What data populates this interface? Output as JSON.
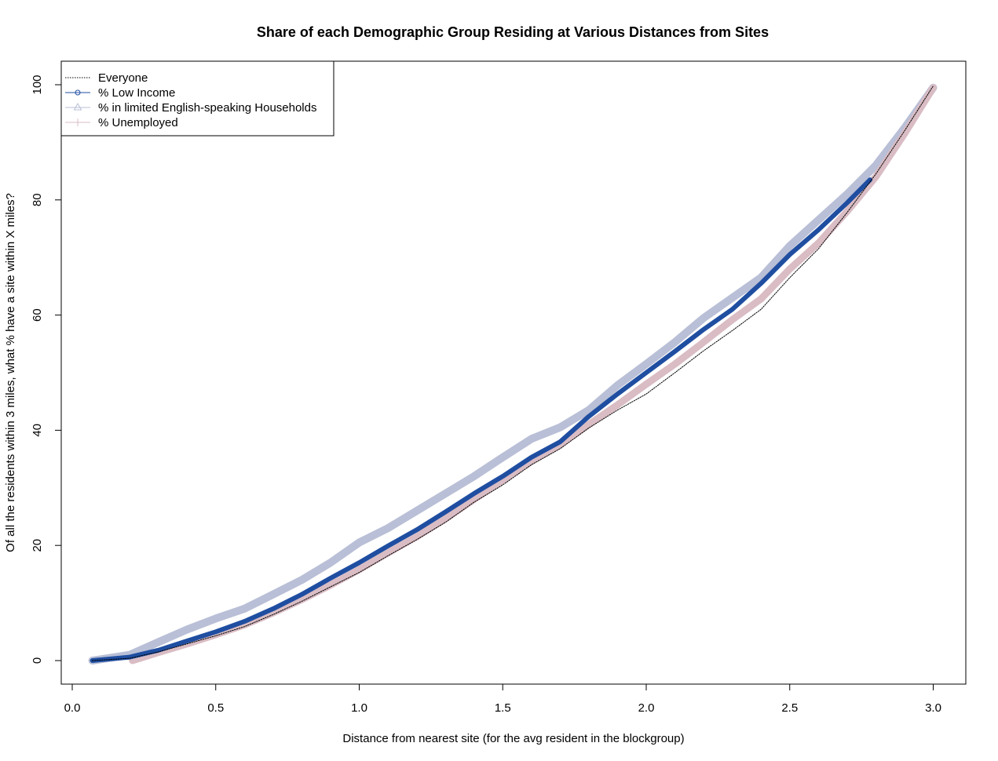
{
  "chart_data": {
    "type": "line",
    "title": "Share of each Demographic Group Residing at Various Distances from Sites",
    "xlabel": "Distance from nearest site (for the avg resident in the blockgroup)",
    "ylabel": "Of all the residents within 3 miles, what % have a site within X miles?",
    "xlim": [
      -0.04,
      3.11
    ],
    "ylim": [
      -4,
      105
    ],
    "xticks": [
      "0.0",
      "0.5",
      "1.0",
      "1.5",
      "2.0",
      "2.5",
      "3.0"
    ],
    "xtick_values": [
      0,
      0.5,
      1.0,
      1.5,
      2.0,
      2.5,
      3.0
    ],
    "yticks": [
      "0",
      "20",
      "40",
      "60",
      "80",
      "100"
    ],
    "ytick_values": [
      0,
      20,
      40,
      60,
      80,
      100
    ],
    "legend_position": "top-left",
    "grid": false,
    "series": [
      {
        "name": "Everyone",
        "color": "#000000",
        "style": "dotted",
        "x": [
          0.07,
          0.2,
          0.3,
          0.4,
          0.5,
          0.6,
          0.7,
          0.8,
          0.9,
          1.0,
          1.1,
          1.2,
          1.3,
          1.4,
          1.5,
          1.6,
          1.7,
          1.8,
          1.9,
          2.0,
          2.1,
          2.2,
          2.3,
          2.4,
          2.5,
          2.6,
          2.7,
          2.8,
          2.9,
          3.0
        ],
        "values": [
          0,
          0.4,
          1.5,
          2.9,
          4.3,
          5.9,
          8.0,
          10.3,
          12.8,
          15.3,
          18.2,
          21.0,
          24.0,
          27.5,
          30.5,
          34.0,
          36.8,
          40.4,
          43.5,
          46.3,
          50.0,
          53.8,
          57.3,
          61.0,
          66.5,
          71.5,
          77.8,
          84.5,
          92.0,
          99.8
        ]
      },
      {
        "name": "% Low Income",
        "color": "#1f4ea1",
        "style": "thick",
        "x": [
          0.07,
          0.2,
          0.3,
          0.4,
          0.5,
          0.6,
          0.7,
          0.8,
          0.9,
          1.0,
          1.1,
          1.2,
          1.3,
          1.4,
          1.5,
          1.6,
          1.7,
          1.8,
          1.9,
          2.0,
          2.1,
          2.2,
          2.3,
          2.4,
          2.5,
          2.6,
          2.7,
          2.78
        ],
        "values": [
          0,
          0.6,
          1.8,
          3.4,
          5.0,
          6.8,
          9.0,
          11.5,
          14.3,
          17.0,
          19.9,
          22.7,
          25.8,
          29.0,
          32.0,
          35.3,
          38.0,
          42.4,
          46.3,
          50.0,
          53.7,
          57.5,
          61.0,
          65.5,
          70.5,
          74.8,
          79.5,
          83.5
        ]
      },
      {
        "name": "% in limited English-speaking Households",
        "color": "#b9bfd6",
        "style": "thick",
        "x": [
          0.07,
          0.2,
          0.3,
          0.4,
          0.5,
          0.6,
          0.7,
          0.8,
          0.9,
          1.0,
          1.1,
          1.2,
          1.3,
          1.4,
          1.5,
          1.6,
          1.7,
          1.8,
          1.9,
          2.0,
          2.1,
          2.2,
          2.3,
          2.4,
          2.5,
          2.6,
          2.7,
          2.8,
          2.9,
          3.0
        ],
        "values": [
          0,
          1.0,
          3.2,
          5.4,
          7.3,
          9.0,
          11.5,
          14.0,
          17.0,
          20.5,
          23.0,
          26.0,
          29.0,
          32.0,
          35.3,
          38.5,
          40.5,
          43.5,
          47.8,
          51.5,
          55.3,
          59.5,
          63.0,
          66.5,
          72.0,
          76.5,
          81.0,
          86.0,
          92.5,
          99.5
        ]
      },
      {
        "name": "% Unemployed",
        "color": "#d9bcc4",
        "style": "thick",
        "x": [
          0.21,
          0.3,
          0.4,
          0.5,
          0.6,
          0.7,
          0.8,
          0.9,
          1.0,
          1.1,
          1.2,
          1.3,
          1.4,
          1.5,
          1.6,
          1.7,
          1.8,
          1.9,
          2.0,
          2.1,
          2.2,
          2.3,
          2.4,
          2.5,
          2.6,
          2.7,
          2.8,
          2.9,
          3.0
        ],
        "values": [
          0,
          1.4,
          2.9,
          4.5,
          6.2,
          8.3,
          10.6,
          13.1,
          15.8,
          18.7,
          21.5,
          24.6,
          28.0,
          31.3,
          34.6,
          37.5,
          41.0,
          44.4,
          48.0,
          51.5,
          55.3,
          59.2,
          62.8,
          68.0,
          72.5,
          78.0,
          84.0,
          91.5,
          99.5
        ]
      }
    ]
  }
}
